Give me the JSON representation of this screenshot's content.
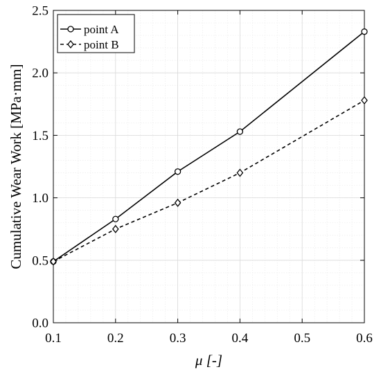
{
  "chart_data": {
    "type": "line",
    "xlabel": "μ [-]",
    "ylabel": "Cumulative Wear Work [MPa·mm]",
    "xlim": [
      0.1,
      0.6
    ],
    "ylim": [
      0.0,
      2.5
    ],
    "x_ticks": [
      "0.1",
      "0.2",
      "0.3",
      "0.4",
      "0.5",
      "0.6"
    ],
    "y_ticks": [
      "0.0",
      "0.5",
      "1.0",
      "1.5",
      "2.0",
      "2.5"
    ],
    "grid": true,
    "minor_grid": true,
    "legend_position": "top-left",
    "x": [
      0.1,
      0.2,
      0.3,
      0.4,
      0.6
    ],
    "series": [
      {
        "name": "point A",
        "values": [
          0.49,
          0.83,
          1.21,
          1.53,
          2.33
        ],
        "marker": "circle",
        "line_style": "solid",
        "color": "#000000"
      },
      {
        "name": "point B",
        "values": [
          0.49,
          0.75,
          0.96,
          1.2,
          1.78
        ],
        "marker": "diamond",
        "line_style": "dashed",
        "color": "#000000"
      }
    ]
  }
}
